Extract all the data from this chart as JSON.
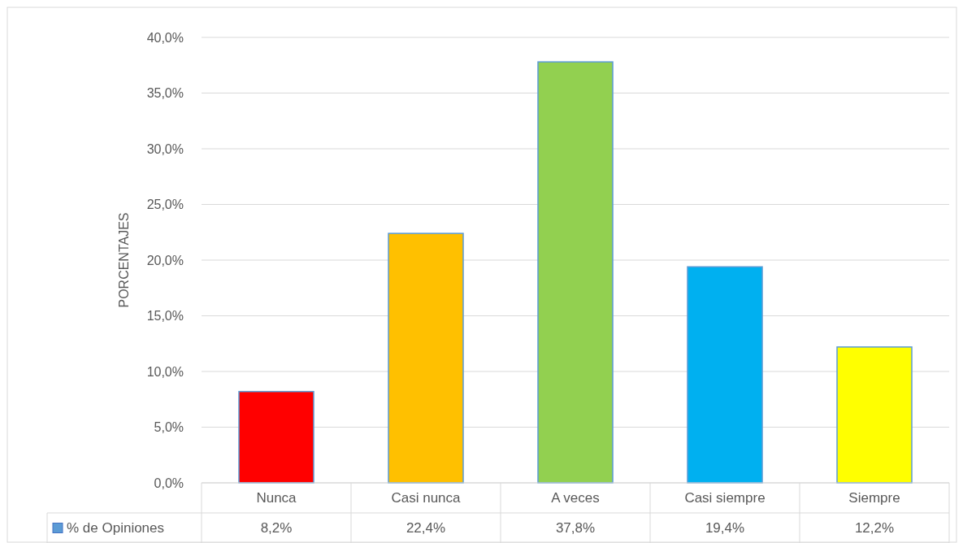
{
  "chart_data": {
    "type": "bar",
    "ylabel": "PORCENTAJES",
    "categories": [
      "Nunca",
      "Casi nunca",
      "A veces",
      "Casi siempre",
      "Siempre"
    ],
    "series": [
      {
        "name": "% de Opiniones",
        "color": "#5b9bd5",
        "colors": [
          "#ff0000",
          "#ffc000",
          "#92d050",
          "#00b0f0",
          "#ffff00"
        ],
        "values": [
          8.2,
          22.4,
          37.8,
          19.4,
          12.2
        ],
        "value_labels": [
          "8,2%",
          "22,4%",
          "37,8%",
          "19,4%",
          "12,2%"
        ]
      }
    ],
    "ylim": [
      0,
      40
    ],
    "yticks": [
      {
        "value": 0,
        "label": "0,0%"
      },
      {
        "value": 5,
        "label": "5,0%"
      },
      {
        "value": 10,
        "label": "10,0%"
      },
      {
        "value": 15,
        "label": "15,0%"
      },
      {
        "value": 20,
        "label": "20,0%"
      },
      {
        "value": 25,
        "label": "25,0%"
      },
      {
        "value": 30,
        "label": "30,0%"
      },
      {
        "value": 35,
        "label": "35,0%"
      },
      {
        "value": 40,
        "label": "40,0%"
      }
    ],
    "grid": "y",
    "legend": "bottom"
  }
}
